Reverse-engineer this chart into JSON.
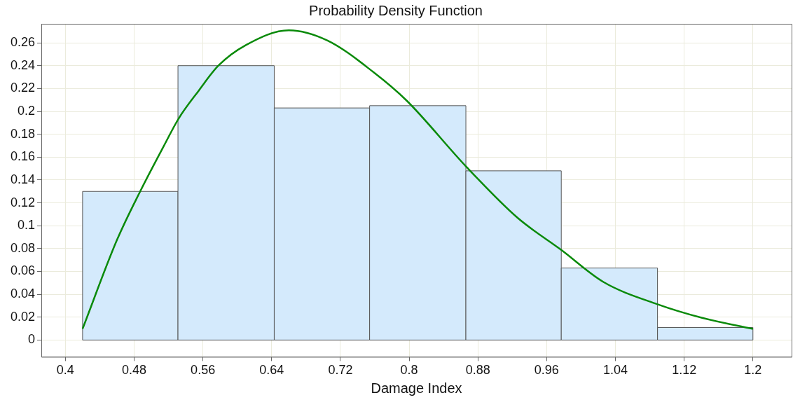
{
  "chart_data": {
    "type": "histogram",
    "title": "Probability Density Function",
    "xlabel": "Damage Index",
    "xlim": [
      0.372,
      1.245
    ],
    "xticks": [
      0.4,
      0.48,
      0.56,
      0.64,
      0.72,
      0.8,
      0.88,
      0.96,
      1.04,
      1.12,
      1.2
    ],
    "ylim": [
      -0.0147,
      0.2766
    ],
    "yticks": [
      0,
      0.02,
      0.04,
      0.06,
      0.08,
      0.1,
      0.12,
      0.14,
      0.16,
      0.18,
      0.2,
      0.22,
      0.24,
      0.26
    ],
    "grid": true,
    "legend": false,
    "series": [
      {
        "color": "#d4eafc",
        "bins": [
          0.42,
          0.531,
          0.643,
          0.754,
          0.866,
          0.977,
          1.089,
          1.2
        ],
        "values": [
          0.13,
          0.24,
          0.203,
          0.205,
          0.148,
          0.063,
          0.011
        ]
      },
      {
        "type": "line",
        "color": "#0a8a0a",
        "marker": "none",
        "x": [
          0.42,
          0.46,
          0.487,
          0.514,
          0.532,
          0.555,
          0.578,
          0.61,
          0.66,
          0.705,
          0.759,
          0.797,
          0.866,
          0.926,
          0.977,
          1.026,
          1.089,
          1.141,
          1.2
        ],
        "values": [
          0.0098,
          0.0875,
          0.13,
          0.169,
          0.194,
          0.218,
          0.24,
          0.258,
          0.271,
          0.262,
          0.234,
          0.2095,
          0.152,
          0.107,
          0.0788,
          0.0508,
          0.0313,
          0.0194,
          0.0097
        ]
      }
    ]
  }
}
